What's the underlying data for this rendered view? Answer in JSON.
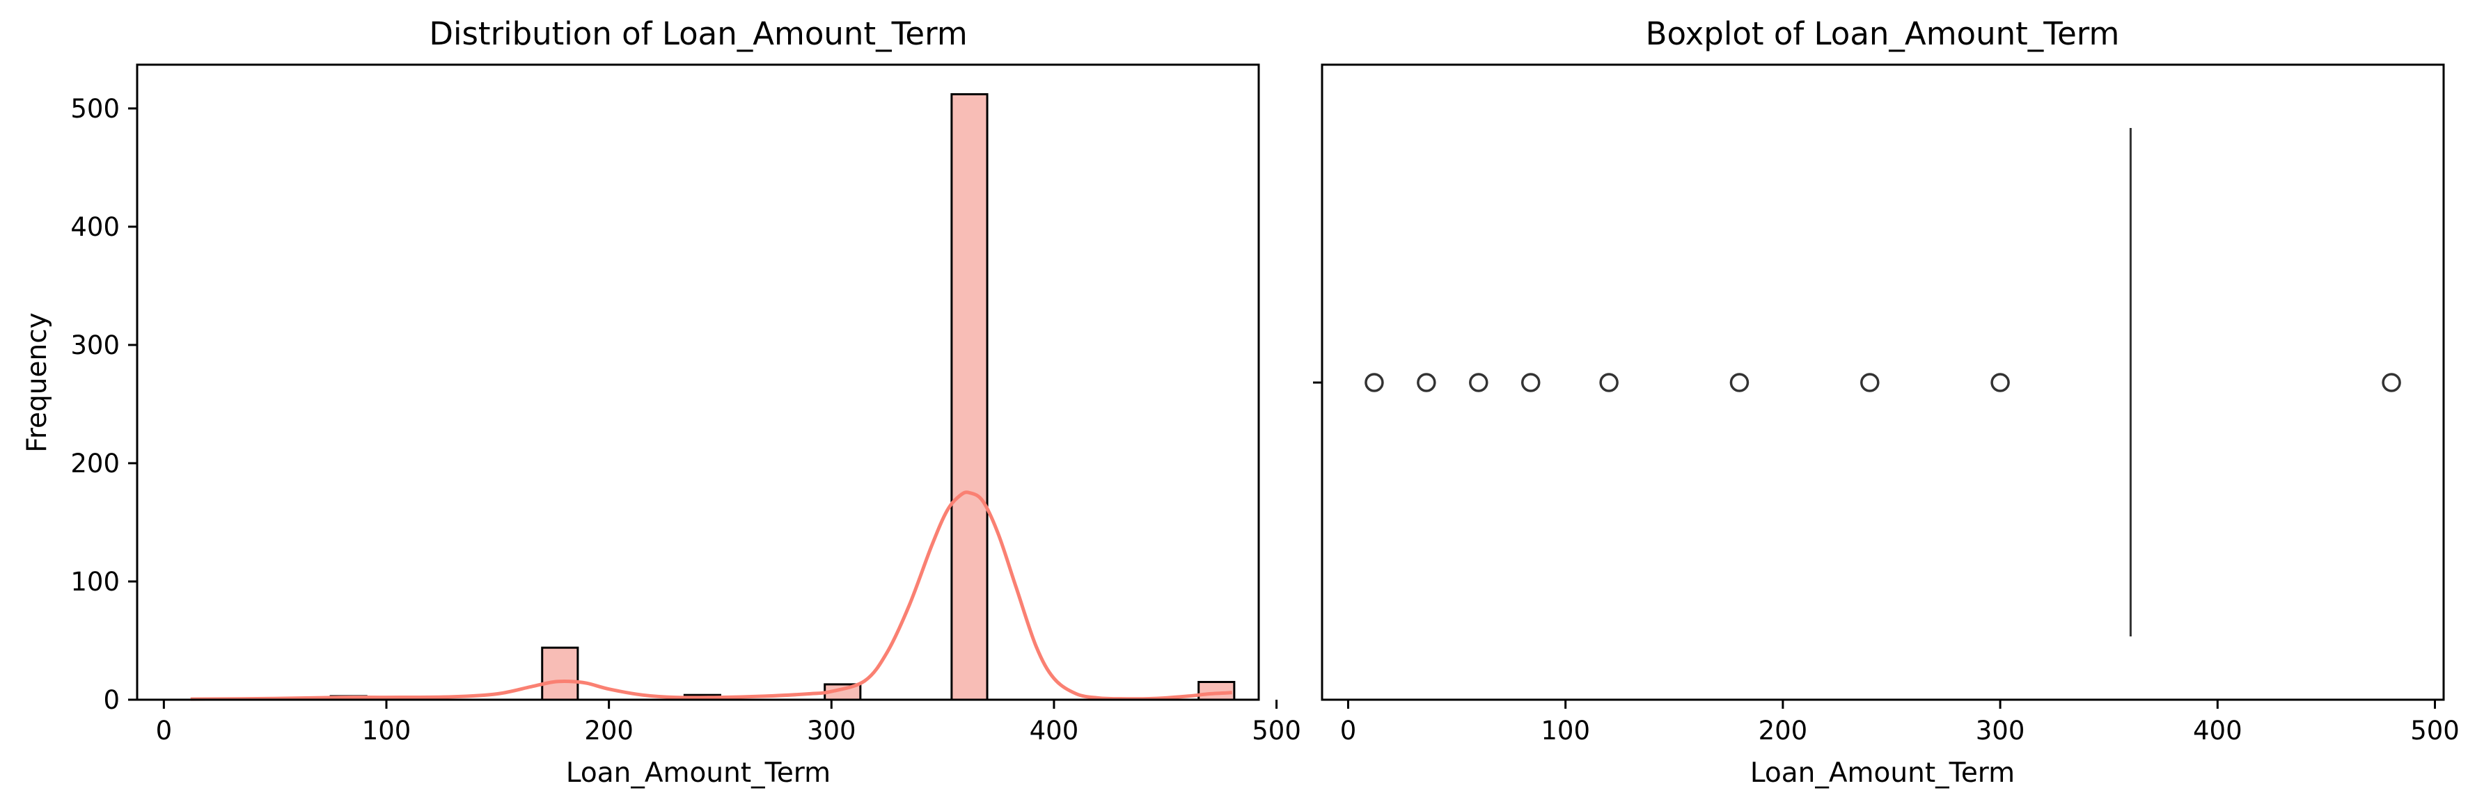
{
  "chart_data": [
    {
      "type": "bar",
      "subtype": "histogram-with-kde",
      "title": "Distribution of Loan_Amount_Term",
      "xlabel": "Loan_Amount_Term",
      "ylabel": "Frequency",
      "xlim": [
        -12,
        492
      ],
      "ylim": [
        0,
        537
      ],
      "xticks": [
        0,
        100,
        200,
        300,
        400,
        500
      ],
      "yticks": [
        0,
        100,
        200,
        300,
        400,
        500
      ],
      "bar_color": "#f8bdb6",
      "edge_color": "#000000",
      "kde_color": "#fa8072",
      "bins": [
        {
          "x0": 75,
          "x1": 91,
          "count": 3
        },
        {
          "x0": 107,
          "x1": 123,
          "count": 2
        },
        {
          "x0": 170,
          "x1": 186,
          "count": 44
        },
        {
          "x0": 234,
          "x1": 250,
          "count": 4
        },
        {
          "x0": 297,
          "x1": 313,
          "count": 13
        },
        {
          "x0": 354,
          "x1": 370,
          "count": 512
        },
        {
          "x0": 465,
          "x1": 481,
          "count": 15
        }
      ],
      "kde": {
        "x": [
          12,
          50,
          80,
          100,
          130,
          150,
          165,
          175,
          182,
          190,
          200,
          215,
          230,
          250,
          270,
          290,
          300,
          315,
          325,
          335,
          345,
          352,
          358,
          362,
          368,
          375,
          383,
          392,
          400,
          410,
          420,
          430,
          445,
          460,
          470,
          480
        ],
        "y": [
          0.5,
          1,
          2,
          2,
          2.5,
          5,
          11,
          15,
          15.5,
          14,
          9,
          4,
          2,
          2,
          3,
          5,
          7,
          16,
          40,
          80,
          130,
          160,
          173,
          175,
          168,
          140,
          95,
          45,
          18,
          5,
          1.5,
          0.8,
          1,
          3,
          5,
          6
        ]
      }
    },
    {
      "type": "boxplot",
      "title": "Boxplot of Loan_Amount_Term",
      "xlabel": "Loan_Amount_Term",
      "ylabel": "",
      "xlim": [
        -12,
        504
      ],
      "xticks": [
        0,
        100,
        200,
        300,
        400,
        500
      ],
      "median": 360,
      "q1": 360,
      "q3": 360,
      "whisker_low": 360,
      "whisker_high": 360,
      "outliers": [
        12,
        36,
        60,
        84,
        120,
        180,
        240,
        300,
        480
      ],
      "line_color": "#333333"
    }
  ]
}
